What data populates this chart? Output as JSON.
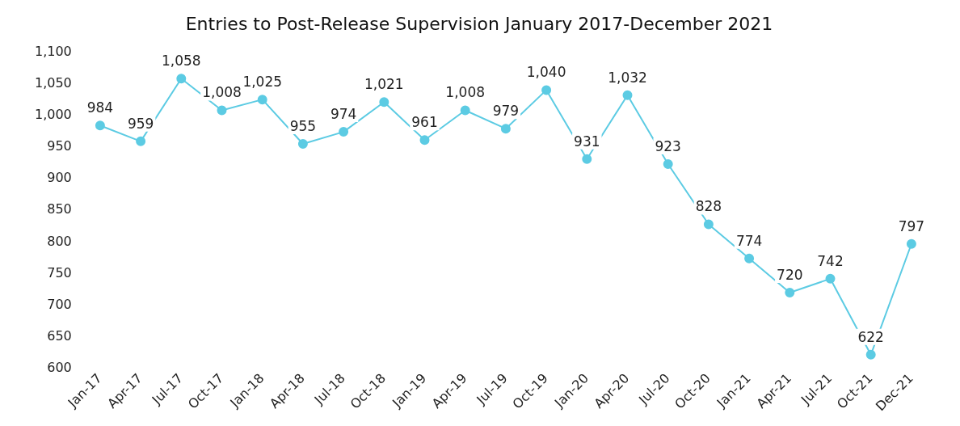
{
  "chart_data": {
    "type": "line",
    "title": "Entries to Post-Release Supervision January 2017-December 2021",
    "categories": [
      "Jan-17",
      "Apr-17",
      "Jul-17",
      "Oct-17",
      "Jan-18",
      "Apr-18",
      "Jul-18",
      "Oct-18",
      "Jan-19",
      "Apr-19",
      "Jul-19",
      "Oct-19",
      "Jan-20",
      "Apr-20",
      "Jul-20",
      "Oct-20",
      "Jan-21",
      "Apr-21",
      "Jul-21",
      "Oct-21",
      "Dec-21"
    ],
    "series": [
      {
        "color": "#5ccbe3",
        "values": [
          984,
          959,
          1058,
          1008,
          1025,
          955,
          974,
          1021,
          961,
          1008,
          979,
          1040,
          931,
          1032,
          923,
          828,
          774,
          720,
          742,
          622,
          797
        ],
        "value_labels": [
          "984",
          "959",
          "1,058",
          "1,008",
          "1,025",
          "955",
          "974",
          "1,021",
          "961",
          "1,008",
          "979",
          "1,040",
          "931",
          "1,032",
          "923",
          "828",
          "774",
          "720",
          "742",
          "622",
          "797"
        ]
      }
    ],
    "ylim": [
      600,
      1100
    ],
    "yticks": [
      {
        "value": 600,
        "label": "600"
      },
      {
        "value": 650,
        "label": "650"
      },
      {
        "value": 700,
        "label": "700"
      },
      {
        "value": 750,
        "label": "750"
      },
      {
        "value": 800,
        "label": "800"
      },
      {
        "value": 850,
        "label": "850"
      },
      {
        "value": 900,
        "label": "900"
      },
      {
        "value": 950,
        "label": "950"
      },
      {
        "value": 1000,
        "label": "1,000"
      },
      {
        "value": 1050,
        "label": "1,050"
      },
      {
        "value": 1100,
        "label": "1,100"
      }
    ],
    "grid": false,
    "legend": false,
    "marker": "circle",
    "line_style": "solid"
  }
}
